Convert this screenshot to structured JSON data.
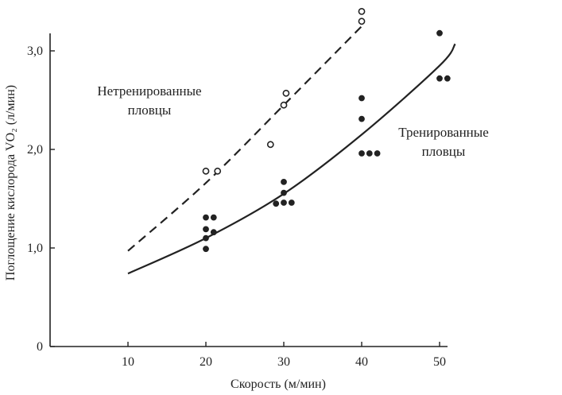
{
  "chart_data": {
    "type": "scatter",
    "title": "",
    "xlabel": "Скорость (м/мин)",
    "ylabel": "Поглощение кислорода VO₂ (л/мин)",
    "xlim": [
      0,
      52
    ],
    "ylim": [
      0,
      3.1
    ],
    "xticks": [
      "10",
      "20",
      "30",
      "40",
      "50"
    ],
    "yticks": [
      "0",
      "1,0",
      "2,0",
      "3,0"
    ],
    "grid": false,
    "legend": "none",
    "annotations": [
      {
        "lines": [
          "Нетренированные",
          "пловцы"
        ]
      },
      {
        "lines": [
          "Тренированные",
          "пловцы"
        ]
      }
    ],
    "series": [
      {
        "marker": "open-circle",
        "points": [
          [
            20,
            1.78
          ],
          [
            21.5,
            1.78
          ],
          [
            28.3,
            2.05
          ],
          [
            30,
            2.45
          ],
          [
            30.3,
            2.57
          ],
          [
            40,
            3.3
          ],
          [
            40,
            3.4
          ]
        ]
      },
      {
        "marker": "filled-circle",
        "points": [
          [
            20,
            1.31
          ],
          [
            21,
            1.31
          ],
          [
            20,
            1.19
          ],
          [
            20,
            1.1
          ],
          [
            21,
            1.16
          ],
          [
            20,
            0.99
          ],
          [
            29,
            1.45
          ],
          [
            30,
            1.67
          ],
          [
            30,
            1.56
          ],
          [
            30,
            1.46
          ],
          [
            31,
            1.46
          ],
          [
            40,
            2.52
          ],
          [
            40,
            2.31
          ],
          [
            40,
            1.96
          ],
          [
            41,
            1.96
          ],
          [
            42,
            1.96
          ],
          [
            50,
            3.18
          ],
          [
            50,
            2.72
          ],
          [
            51,
            2.72
          ]
        ]
      }
    ],
    "fit_curves": [
      {
        "style": "dashed",
        "x": [
          10,
          20,
          30,
          40
        ],
        "y": [
          0.97,
          1.66,
          2.45,
          3.25
        ]
      },
      {
        "style": "solid",
        "x": [
          10,
          20,
          30,
          40,
          50,
          52
        ],
        "y": [
          0.74,
          1.1,
          1.55,
          2.15,
          2.85,
          3.07
        ]
      }
    ]
  }
}
